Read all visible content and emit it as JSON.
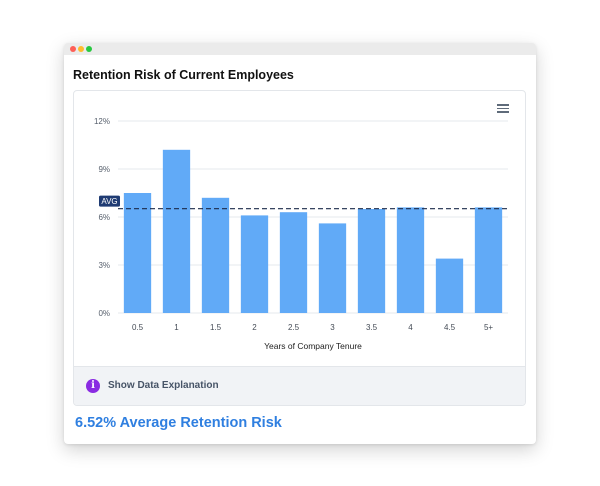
{
  "card": {
    "title": "Retention Risk of Current Employees",
    "explanation_label": "Show Data Explanation",
    "summary": "6.52% Average Retention Risk"
  },
  "icons": {
    "menu": "hamburger-menu-icon",
    "info": "info-icon",
    "info_glyph": "i"
  },
  "colors": {
    "bar": "#61aaf7",
    "avg_line": "#1c2b4a",
    "avg_label_bg": "#1f3b73",
    "summary_text": "#2f7fe0",
    "info_icon": "#8a2be2"
  },
  "chart_data": {
    "type": "bar",
    "categories": [
      "0.5",
      "1",
      "1.5",
      "2",
      "2.5",
      "3",
      "3.5",
      "4",
      "4.5",
      "5+"
    ],
    "values": [
      7.5,
      10.2,
      7.2,
      6.1,
      6.3,
      5.6,
      6.5,
      6.6,
      3.4,
      6.6
    ],
    "xlabel": "Years of Company Tenure",
    "ylabel": "",
    "ylim": [
      0,
      12
    ],
    "yticks": [
      0,
      3,
      6,
      9,
      12
    ],
    "ytick_labels": [
      "0%",
      "3%",
      "6%",
      "9%",
      "12%"
    ],
    "average": 6.52,
    "average_label": "AVG",
    "grid": true
  }
}
